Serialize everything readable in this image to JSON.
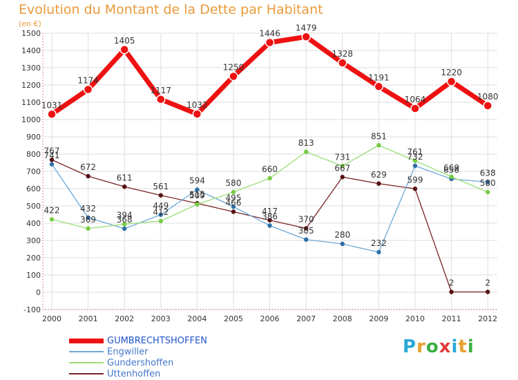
{
  "header": {
    "title": "Evolution du Montant de la Dette par Habitant",
    "subtitle": "(en €)"
  },
  "logo": {
    "letters": [
      "P",
      "r",
      "o",
      "x",
      "i",
      "t",
      "i"
    ],
    "colors": [
      "#2aa7d8",
      "#e8a02e",
      "#3cb043",
      "#e53a3a",
      "#2aa7d8",
      "#e8a02e",
      "#3cb043"
    ]
  },
  "chart_data": {
    "type": "line",
    "x": [
      "2000",
      "2001",
      "2002",
      "2003",
      "2004",
      "2005",
      "2006",
      "2007",
      "2008",
      "2009",
      "2010",
      "2011",
      "2012"
    ],
    "ylim": [
      -100,
      1500
    ],
    "yticks": [
      "-100",
      "0",
      "100",
      "200",
      "300",
      "400",
      "500",
      "600",
      "700",
      "800",
      "900",
      "1000",
      "1100",
      "1200",
      "1300",
      "1400",
      "1500"
    ],
    "grid": true,
    "legend_position": "bottom-left",
    "series": [
      {
        "name": "GUMBRECHTSHOFFEN",
        "color": "#ee1111",
        "marker": "#ee1111",
        "values": [
          1031,
          1174,
          1405,
          1117,
          1032,
          1250,
          1446,
          1479,
          1328,
          1191,
          1064,
          1220,
          1080
        ],
        "labels": [
          "1031",
          "1174",
          "1405",
          "1117",
          "1032",
          "1250",
          "1446",
          "1479",
          "1328",
          "1191",
          "1064",
          "1220",
          "1080"
        ]
      },
      {
        "name": "Engwiller",
        "color": "#6aa8d8",
        "marker": "#2f6fa8",
        "values": [
          741,
          432,
          368,
          449,
          594,
          495,
          386,
          305,
          280,
          232,
          732,
          656,
          638
        ],
        "labels": [
          "741",
          "432",
          "368",
          "449",
          "594",
          "495",
          "386",
          "305",
          "280",
          "232",
          "732",
          "656",
          "638"
        ]
      },
      {
        "name": "Gundershoffen",
        "color": "#99dd77",
        "marker": "#77cc44",
        "values": [
          422,
          369,
          394,
          412,
          509,
          580,
          660,
          813,
          731,
          851,
          761,
          669,
          580
        ],
        "labels": [
          "422",
          "369",
          "394",
          "412",
          "509",
          "580",
          "660",
          "813",
          "731",
          "851",
          "761",
          "669",
          "580"
        ]
      },
      {
        "name": "Uttenhoffen",
        "color": "#772222",
        "marker": "#551111",
        "values": [
          767,
          672,
          611,
          561,
          515,
          466,
          417,
          370,
          667,
          629,
          599,
          2,
          2
        ],
        "labels": [
          "767",
          "672",
          "611",
          "561",
          "515",
          "466",
          "417",
          "370",
          "667",
          "629",
          "599",
          "2",
          "2"
        ]
      }
    ]
  }
}
